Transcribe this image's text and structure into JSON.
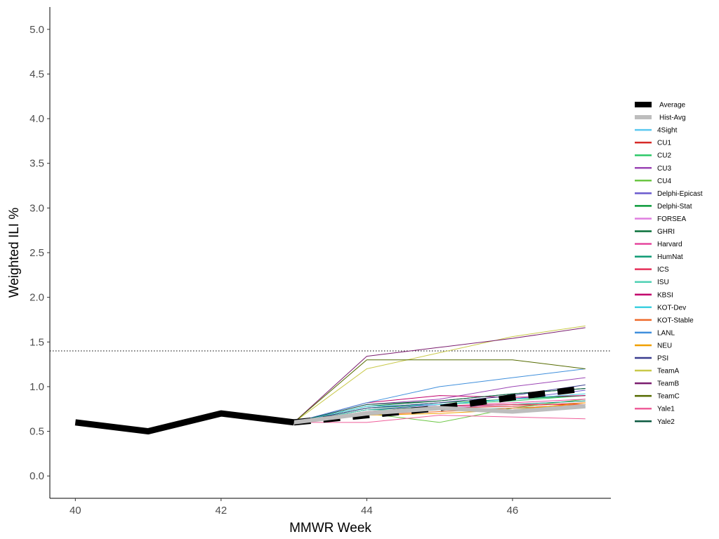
{
  "chart_data": {
    "type": "line",
    "title": "",
    "xlabel": "MMWR Week",
    "ylabel": "Weighted ILI %",
    "xlim": [
      39.65,
      47.35
    ],
    "ylim": [
      -0.25,
      5.25
    ],
    "x_ticks": [
      40,
      42,
      44,
      46
    ],
    "x_tick_labels": [
      "40",
      "42",
      "44",
      "46"
    ],
    "y_ticks": [
      0.0,
      0.5,
      1.0,
      1.5,
      2.0,
      2.5,
      3.0,
      3.5,
      4.0,
      4.5,
      5.0
    ],
    "y_tick_labels": [
      "0.0",
      "0.5",
      "1.0",
      "1.5",
      "2.0",
      "2.5",
      "3.0",
      "3.5",
      "4.0",
      "4.5",
      "5.0"
    ],
    "grid": false,
    "legend_position": "right",
    "baseline": {
      "value": 1.4,
      "style": "dotted",
      "color": "#000000"
    },
    "observed": {
      "x": [
        40,
        41,
        42,
        43
      ],
      "y": [
        0.6,
        0.5,
        0.7,
        0.6
      ],
      "color": "#000000"
    },
    "forecast_x": [
      43,
      44,
      45,
      46,
      47
    ],
    "series": [
      {
        "name": "Average",
        "color": "#000000",
        "style": "dashed-thick",
        "values": [
          0.6,
          0.68,
          0.76,
          0.88,
          0.98
        ]
      },
      {
        "name": "Hist-Avg",
        "color": "#bdbdbd",
        "style": "thick",
        "values": [
          0.6,
          0.7,
          0.76,
          0.72,
          0.78
        ]
      },
      {
        "name": "4Sight",
        "color": "#5bc8f0",
        "values": [
          0.6,
          0.72,
          0.76,
          0.74,
          0.78
        ]
      },
      {
        "name": "CU1",
        "color": "#d62a28",
        "values": [
          0.6,
          0.7,
          0.76,
          0.78,
          0.82
        ]
      },
      {
        "name": "CU2",
        "color": "#2ec96a",
        "values": [
          0.6,
          0.76,
          0.8,
          0.84,
          0.9
        ]
      },
      {
        "name": "CU3",
        "color": "#9b45b5",
        "values": [
          0.6,
          0.8,
          0.86,
          1.0,
          1.1
        ]
      },
      {
        "name": "CU4",
        "color": "#6cc644",
        "values": [
          0.6,
          0.7,
          0.6,
          0.76,
          0.86
        ]
      },
      {
        "name": "Delphi-Epicast",
        "color": "#6a5acd",
        "values": [
          0.6,
          0.74,
          0.8,
          0.86,
          0.96
        ]
      },
      {
        "name": "Delphi-Stat",
        "color": "#0a9a3a",
        "values": [
          0.6,
          0.76,
          0.82,
          0.86,
          0.9
        ]
      },
      {
        "name": "FORSEA",
        "color": "#e07fe0",
        "values": [
          0.6,
          0.72,
          0.76,
          0.8,
          0.84
        ]
      },
      {
        "name": "GHRI",
        "color": "#08703a",
        "values": [
          0.6,
          0.78,
          0.84,
          0.92,
          0.98
        ]
      },
      {
        "name": "Harvard",
        "color": "#e6479e",
        "values": [
          0.6,
          0.74,
          0.78,
          0.82,
          0.86
        ]
      },
      {
        "name": "HumNat",
        "color": "#0d9a73",
        "values": [
          0.6,
          0.74,
          0.78,
          0.8,
          0.84
        ]
      },
      {
        "name": "ICS",
        "color": "#e6305a",
        "values": [
          0.6,
          0.72,
          0.78,
          0.8,
          0.8
        ]
      },
      {
        "name": "ISU",
        "color": "#4fd1b4",
        "values": [
          0.6,
          0.74,
          0.74,
          0.76,
          0.78
        ]
      },
      {
        "name": "KBSI",
        "color": "#c2006b",
        "values": [
          0.6,
          0.82,
          0.9,
          0.88,
          0.9
        ]
      },
      {
        "name": "KOT-Dev",
        "color": "#3ed0e0",
        "values": [
          0.6,
          0.78,
          0.8,
          0.86,
          0.92
        ]
      },
      {
        "name": "KOT-Stable",
        "color": "#ef6a2a",
        "values": [
          0.6,
          0.68,
          0.72,
          0.76,
          0.8
        ]
      },
      {
        "name": "LANL",
        "color": "#3f8fdc",
        "values": [
          0.6,
          0.82,
          1.0,
          1.1,
          1.2
        ]
      },
      {
        "name": "NEU",
        "color": "#f0a000",
        "values": [
          0.6,
          0.68,
          0.7,
          0.74,
          0.82
        ]
      },
      {
        "name": "PSI",
        "color": "#3a3d8f",
        "values": [
          0.6,
          0.76,
          0.82,
          0.9,
          1.02
        ]
      },
      {
        "name": "TeamA",
        "color": "#c9c94a",
        "values": [
          0.6,
          1.2,
          1.38,
          1.56,
          1.68
        ]
      },
      {
        "name": "TeamB",
        "color": "#7a1c6e",
        "values": [
          0.6,
          1.34,
          1.44,
          1.54,
          1.66
        ]
      },
      {
        "name": "TeamC",
        "color": "#556b00",
        "values": [
          0.6,
          1.3,
          1.3,
          1.3,
          1.2
        ]
      },
      {
        "name": "Yale1",
        "color": "#ef5f9a",
        "values": [
          0.6,
          0.6,
          0.68,
          0.66,
          0.64
        ]
      },
      {
        "name": "Yale2",
        "color": "#0b5a40",
        "values": [
          0.6,
          0.8,
          0.84,
          0.92,
          0.98
        ]
      }
    ]
  }
}
